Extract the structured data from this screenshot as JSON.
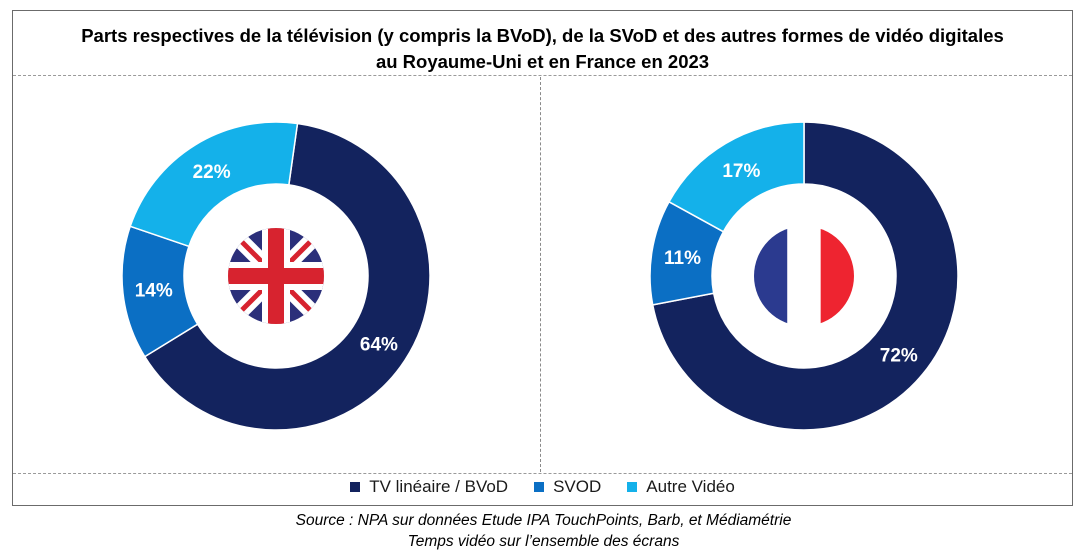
{
  "title": {
    "line1": "Parts respectives de la télévision (y compris la BVoD), de la SVoD et des autres formes de vidéo digitales",
    "line2": "au Royaume-Uni et en France en 2023"
  },
  "colors": {
    "tv": "#13235e",
    "svod": "#0b6fc4",
    "autre": "#14b1ea",
    "uk_blue": "#2b2f7a",
    "uk_red": "#d7232f",
    "fr_blue": "#2b3a8f",
    "fr_red": "#ee2430"
  },
  "legend": [
    "TV linéaire / BVoD",
    "SVOD",
    "Autre Vidéo"
  ],
  "chart_data": [
    {
      "type": "pie",
      "variant": "donut",
      "country": "Royaume-Uni",
      "flag_icon": "uk-flag-icon",
      "categories": [
        "TV linéaire / BVoD",
        "SVOD",
        "Autre Vidéo"
      ],
      "values": [
        64,
        14,
        22
      ],
      "labels": [
        "64%",
        "14%",
        "22%"
      ]
    },
    {
      "type": "pie",
      "variant": "donut",
      "country": "France",
      "flag_icon": "france-flag-icon",
      "categories": [
        "TV linéaire / BVoD",
        "SVOD",
        "Autre Vidéo"
      ],
      "values": [
        72,
        11,
        17
      ],
      "labels": [
        "72%",
        "11%",
        "17%"
      ]
    }
  ],
  "source": {
    "line1": "Source : NPA sur données Etude IPA TouchPoints, Barb, et Médiamétrie",
    "line2": "Temps vidéo sur l’ensemble des écrans"
  }
}
